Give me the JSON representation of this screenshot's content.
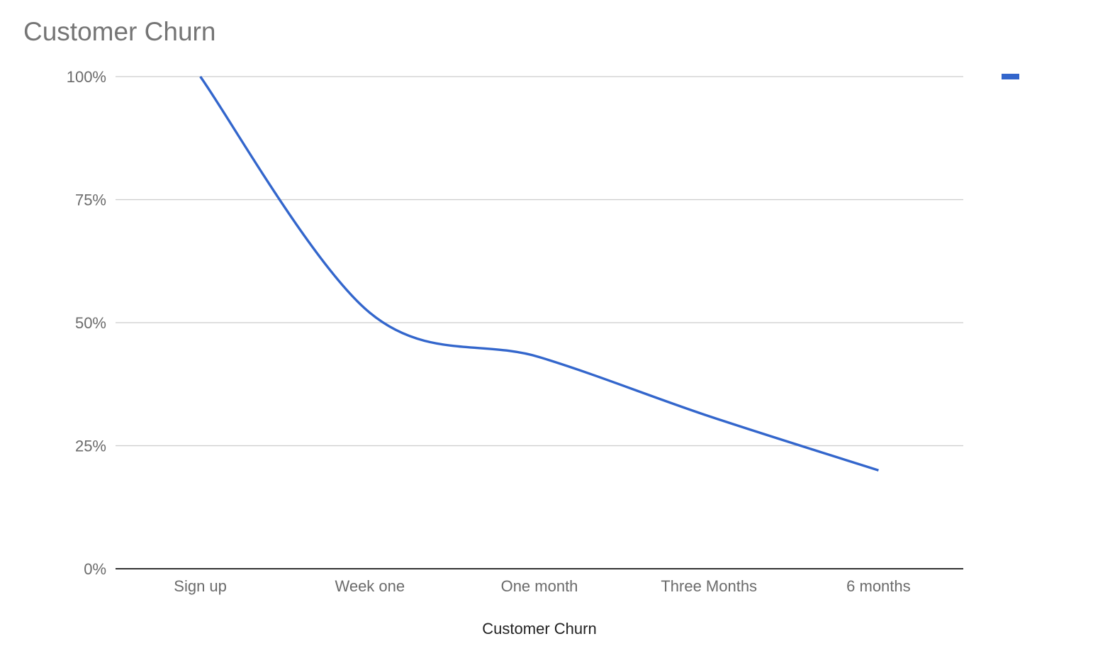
{
  "chart_data": {
    "type": "line",
    "title": "Customer Churn",
    "xlabel": "Customer Churn",
    "ylabel": "",
    "categories": [
      "Sign up",
      "Week one",
      "One month",
      "Three Months",
      "6 months"
    ],
    "series": [
      {
        "name": "",
        "values": [
          100,
          52,
          43,
          31,
          20
        ],
        "color": "#3366cc"
      }
    ],
    "ylim": [
      0,
      100
    ],
    "yticks": [
      0,
      25,
      50,
      75,
      100
    ],
    "ytick_labels": [
      "0%",
      "25%",
      "50%",
      "75%",
      "100%"
    ],
    "smooth": true,
    "grid": true,
    "legend": "top-right",
    "colors": {
      "series": "#3366cc",
      "gridline": "#cccccc",
      "baseline": "#333333",
      "title": "#757575",
      "tick_label": "#6b6b6b"
    }
  }
}
